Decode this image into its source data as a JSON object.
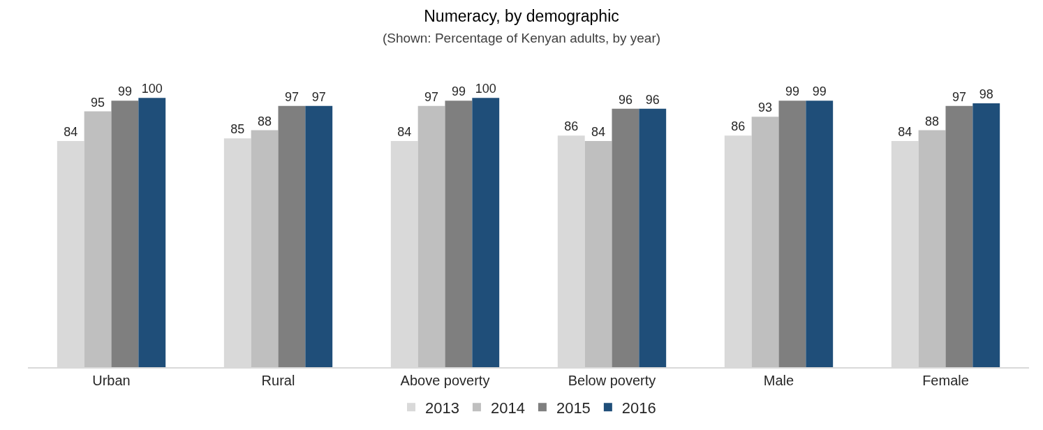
{
  "chart_data": {
    "type": "bar",
    "title": "Numeracy, by demographic",
    "subtitle": "(Shown: Percentage of Kenyan adults, by year)",
    "categories": [
      "Urban",
      "Rural",
      "Above poverty",
      "Below poverty",
      "Male",
      "Female"
    ],
    "series": [
      {
        "name": "2013",
        "color": "#d9d9d9",
        "values": [
          84,
          85,
          84,
          86,
          86,
          84
        ]
      },
      {
        "name": "2014",
        "color": "#bfbfbf",
        "values": [
          95,
          88,
          97,
          84,
          93,
          88
        ]
      },
      {
        "name": "2015",
        "color": "#7f7f7f",
        "values": [
          99,
          97,
          99,
          96,
          99,
          97
        ]
      },
      {
        "name": "2016",
        "color": "#1f4e79",
        "values": [
          100,
          97,
          100,
          96,
          99,
          98
        ]
      }
    ],
    "data_labels": true,
    "tick_labels": "x",
    "legend": "bottom"
  }
}
